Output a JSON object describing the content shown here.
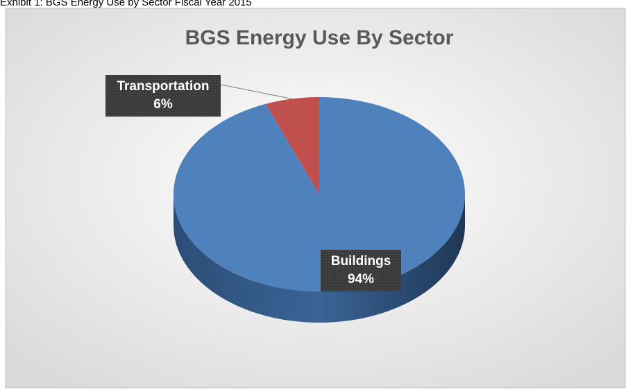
{
  "caption": "Exhibit 1: BGS Energy Use by Sector Fiscal Year 2015",
  "chart_data": {
    "type": "pie3d",
    "title": "BGS Energy Use By Sector",
    "categories": [
      "Buildings",
      "Transportation"
    ],
    "values": [
      94,
      6
    ],
    "value_labels": [
      "94%",
      "6%"
    ],
    "colors": [
      "#4f81bd",
      "#c0504d"
    ],
    "side_colors": [
      "#2c4d75",
      "#8c3836"
    ]
  }
}
